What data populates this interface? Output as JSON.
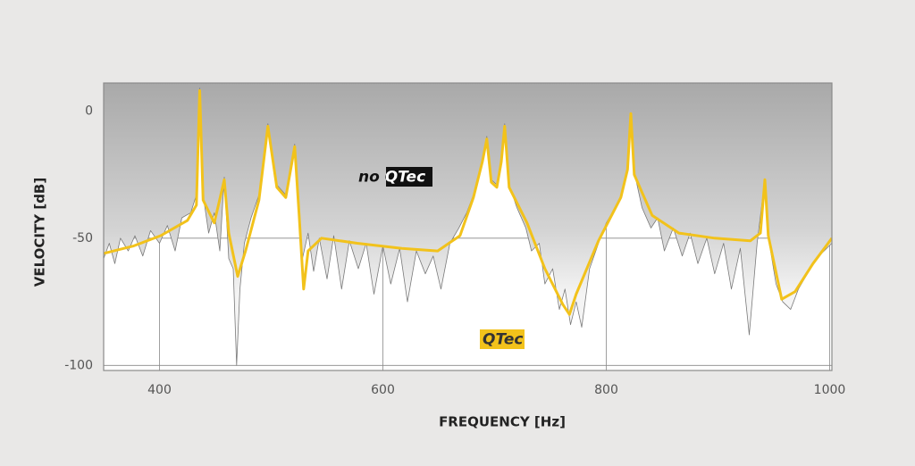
{
  "chart_data": {
    "type": "line",
    "xlabel": "FREQUENCY [Hz]",
    "ylabel": "VELOCITY [dB]",
    "xlim": [
      350,
      1002
    ],
    "ylim": [
      -102,
      11
    ],
    "xticks": [
      400,
      600,
      800,
      1000
    ],
    "yticks": [
      0,
      -50,
      -100
    ],
    "grid": true,
    "series": [
      {
        "name": "no QTec",
        "color": "#7a7a7a",
        "area": true,
        "x": [
          350,
          355,
          360,
          365,
          372,
          378,
          385,
          392,
          400,
          407,
          414,
          420,
          428,
          433,
          436,
          439,
          444,
          449,
          454,
          458,
          462,
          466,
          469,
          472,
          476,
          482,
          489,
          497,
          505,
          513,
          521,
          525,
          528,
          533,
          538,
          543,
          550,
          556,
          563,
          570,
          578,
          585,
          592,
          600,
          607,
          615,
          622,
          630,
          638,
          645,
          652,
          660,
          668,
          675,
          681,
          689,
          693,
          697,
          702,
          706,
          709,
          713,
          720,
          728,
          733,
          740,
          745,
          752,
          758,
          763,
          768,
          773,
          778,
          785,
          793,
          800,
          808,
          814,
          819,
          822,
          825,
          832,
          840,
          846,
          852,
          860,
          868,
          875,
          882,
          890,
          897,
          905,
          912,
          920,
          928,
          935,
          942,
          946,
          952,
          958,
          965,
          972,
          980,
          988,
          995,
          1002
        ],
        "values": [
          -58,
          -52,
          -60,
          -50,
          -55,
          -49,
          -57,
          -47,
          -52,
          -45,
          -55,
          -42,
          -40,
          -33,
          9,
          -33,
          -48,
          -40,
          -55,
          -26,
          -58,
          -62,
          -100,
          -70,
          -52,
          -42,
          -33,
          -5,
          -29,
          -33,
          -13,
          -45,
          -58,
          -48,
          -63,
          -50,
          -66,
          -49,
          -70,
          -51,
          -62,
          -52,
          -72,
          -53,
          -68,
          -54,
          -75,
          -55,
          -64,
          -57,
          -70,
          -52,
          -46,
          -40,
          -33,
          -20,
          -10,
          -27,
          -29,
          -19,
          -5,
          -29,
          -38,
          -46,
          -55,
          -52,
          -68,
          -62,
          -78,
          -70,
          -84,
          -75,
          -85,
          -62,
          -52,
          -44,
          -38,
          -33,
          -22,
          -1,
          -24,
          -38,
          -46,
          -42,
          -55,
          -46,
          -57,
          -48,
          -60,
          -50,
          -64,
          -52,
          -70,
          -54,
          -88,
          -52,
          -27,
          -52,
          -68,
          -75,
          -78,
          -70,
          -64,
          -58,
          -55,
          -52
        ]
      },
      {
        "name": "QTec",
        "color": "#f2c21b",
        "x": [
          350,
          377,
          401,
          425,
          433,
          436,
          439,
          449,
          458,
          462,
          470,
          477,
          489,
          497,
          505,
          513,
          521,
          525,
          529,
          533,
          545,
          577,
          617,
          649,
          669,
          681,
          689,
          693,
          697,
          702,
          706,
          709,
          713,
          729,
          745,
          761,
          767,
          773,
          793,
          813,
          819,
          822,
          825,
          841,
          865,
          897,
          929,
          938,
          942,
          945,
          957,
          969,
          985,
          1002
        ],
        "values": [
          -56,
          -53,
          -49,
          -43,
          -37,
          8,
          -35,
          -44,
          -27,
          -48,
          -65,
          -55,
          -35,
          -6,
          -30,
          -34,
          -14,
          -41,
          -70,
          -55,
          -50,
          -52,
          -54,
          -55,
          -49,
          -34,
          -20,
          -11,
          -28,
          -30,
          -20,
          -6,
          -30,
          -44,
          -62,
          -76,
          -80,
          -72,
          -51,
          -34,
          -23,
          -1,
          -25,
          -41,
          -48,
          -50,
          -51,
          -48,
          -27,
          -49,
          -74,
          -71,
          -60,
          -50
        ]
      }
    ]
  }
}
